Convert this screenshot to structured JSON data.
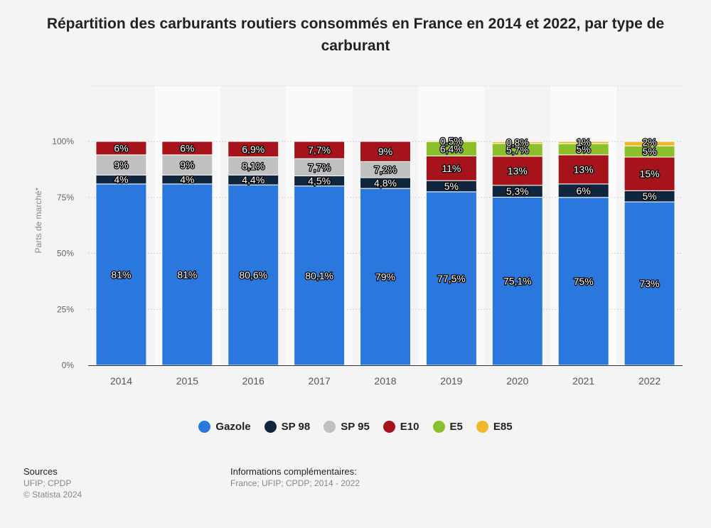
{
  "title": "Répartition des carburants routiers consommés en France en 2014 et 2022, par type de carburant",
  "chart_data": {
    "type": "bar",
    "stacked": true,
    "categories": [
      "2014",
      "2015",
      "2016",
      "2017",
      "2018",
      "2019",
      "2020",
      "2021",
      "2022"
    ],
    "ylabel": "Parts de marché*",
    "ylim": [
      0,
      100
    ],
    "yticks": [
      "0%",
      "25%",
      "50%",
      "75%",
      "100%"
    ],
    "grid": true,
    "legend_position": "bottom",
    "series": [
      {
        "name": "Gazole",
        "color": "#2a77dd",
        "values": [
          81,
          81,
          80.6,
          80.1,
          79,
          77.5,
          75.1,
          75,
          73
        ],
        "labels": [
          "81%",
          "81%",
          "80,6%",
          "80,1%",
          "79%",
          "77,5%",
          "75,1%",
          "75%",
          "73%"
        ]
      },
      {
        "name": "SP 98",
        "color": "#10263f",
        "values": [
          4,
          4,
          4.4,
          4.5,
          4.8,
          5,
          5.3,
          6,
          5
        ],
        "labels": [
          "4%",
          "4%",
          "4,4%",
          "4,5%",
          "4,8%",
          "5%",
          "5,3%",
          "6%",
          "5%"
        ]
      },
      {
        "name": "SP 95",
        "color": "#c0c0c0",
        "values": [
          9,
          9,
          8.1,
          7.7,
          7.2,
          0,
          0,
          0,
          0
        ],
        "labels": [
          "9%",
          "9%",
          "8,1%",
          "7,7%",
          "7,2%",
          "",
          "",
          "",
          ""
        ]
      },
      {
        "name": "E10",
        "color": "#a6131a",
        "values": [
          6,
          6,
          6.9,
          7.7,
          9,
          11,
          13,
          13,
          15
        ],
        "labels": [
          "6%",
          "6%",
          "6,9%",
          "7,7%",
          "9%",
          "11%",
          "13%",
          "13%",
          "15%"
        ]
      },
      {
        "name": "E5",
        "color": "#8cc02a",
        "values": [
          0,
          0,
          0,
          0,
          0,
          6.4,
          5.7,
          5,
          5
        ],
        "labels": [
          "",
          "",
          "",
          "",
          "",
          "6,4%",
          "5,7%",
          "5%",
          "5%"
        ]
      },
      {
        "name": "E85",
        "color": "#f0b92b",
        "values": [
          0,
          0,
          0,
          0,
          0,
          0.5,
          0.8,
          1,
          2
        ],
        "labels": [
          "",
          "",
          "",
          "",
          "",
          "0,5%",
          "0,8%",
          "1%",
          "2%"
        ]
      }
    ]
  },
  "legend": [
    {
      "label": "Gazole",
      "color": "#2a77dd"
    },
    {
      "label": "SP 98",
      "color": "#10263f"
    },
    {
      "label": "SP 95",
      "color": "#c0c0c0"
    },
    {
      "label": "E10",
      "color": "#a6131a"
    },
    {
      "label": "E5",
      "color": "#8cc02a"
    },
    {
      "label": "E85",
      "color": "#f0b92b"
    }
  ],
  "footer": {
    "sources_heading": "Sources",
    "sources_line1": "UFIP; CPDP",
    "sources_line2": "© Statista 2024",
    "info_heading": "Informations complémentaires:",
    "info_text": "France; UFIP; CPDP; 2014 - 2022"
  }
}
